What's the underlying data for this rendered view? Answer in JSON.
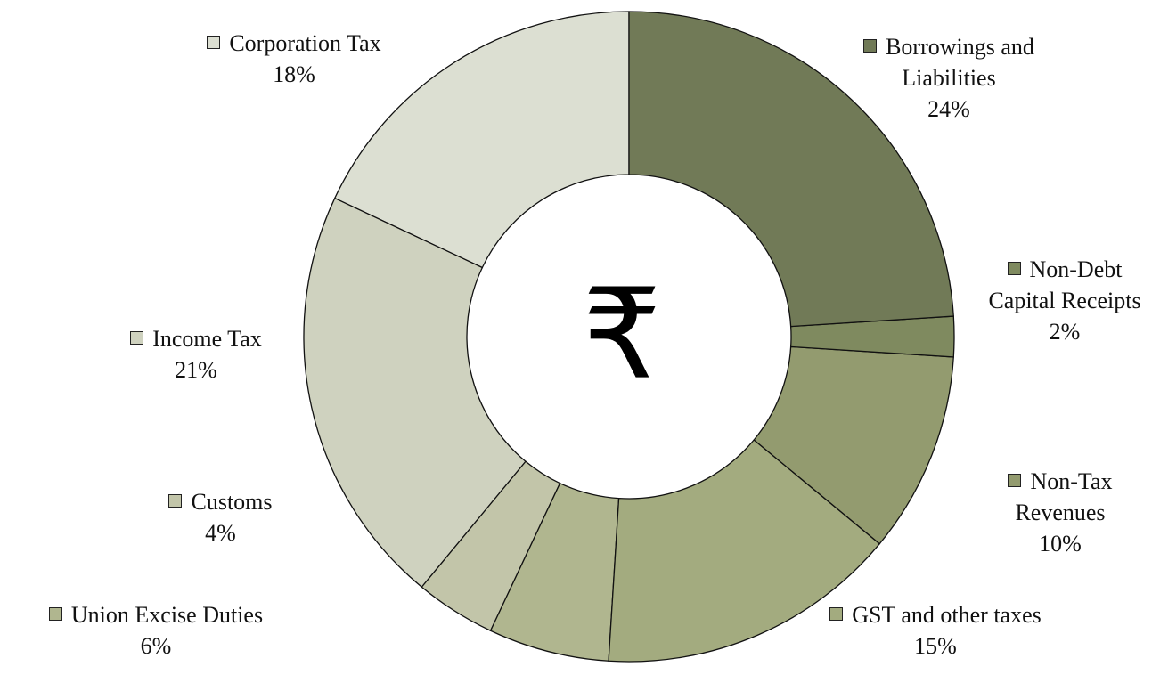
{
  "chart_data": {
    "type": "donut",
    "center_label": "₹",
    "categories": [
      "Borrowings and Liabilities",
      "Non-Debt Capital Receipts",
      "Non-Tax Revenues",
      "GST and other taxes",
      "Union Excise Duties",
      "Customs",
      "Income Tax",
      "Corporation Tax"
    ],
    "values": [
      24,
      2,
      10,
      15,
      6,
      4,
      21,
      18
    ],
    "value_labels": [
      "24%",
      "2%",
      "10%",
      "15%",
      "6%",
      "4%",
      "21%",
      "18%"
    ],
    "colors": [
      "#717a57",
      "#7f8a5f",
      "#939b6f",
      "#a3ab7f",
      "#b0b68f",
      "#c2c5a9",
      "#cfd2bf",
      "#dcdfd2"
    ]
  }
}
